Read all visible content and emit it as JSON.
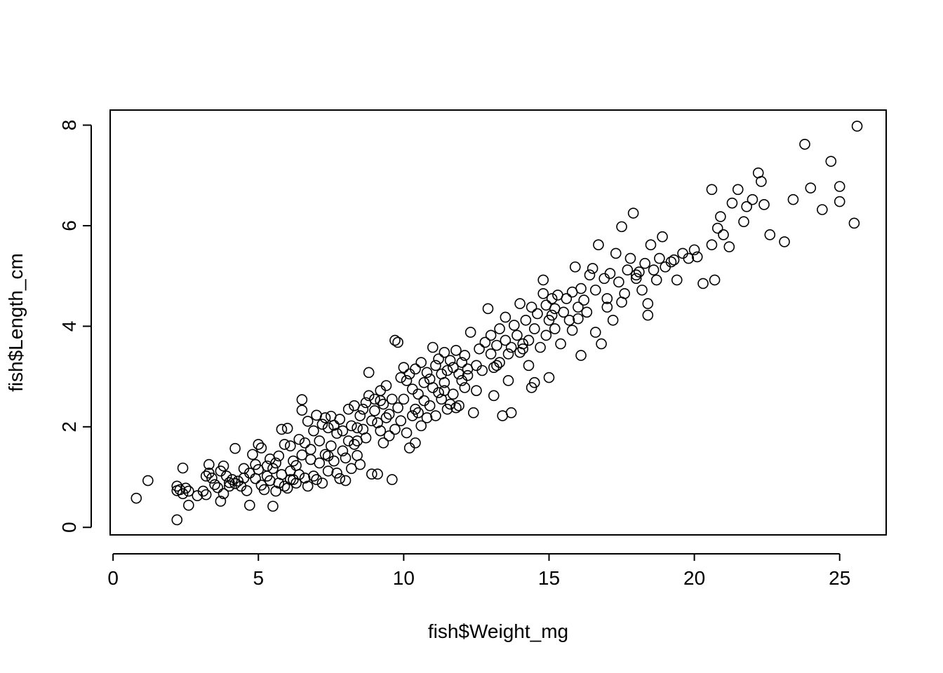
{
  "chart_data": {
    "type": "scatter",
    "title": "",
    "xlabel": "fish$Weight_mg",
    "ylabel": "fish$Length_cm",
    "xlim": [
      -0.1,
      26.6
    ],
    "ylim": [
      -0.15,
      8.3
    ],
    "xticks": [
      0,
      5,
      10,
      15,
      20,
      25
    ],
    "yticks": [
      0,
      2,
      4,
      6,
      8
    ],
    "xtick_labels": [
      "0",
      "5",
      "10",
      "15",
      "20",
      "25"
    ],
    "ytick_labels": [
      "0",
      "2",
      "4",
      "6",
      "8"
    ],
    "grid": false,
    "legend": "none",
    "marker": "open-circle",
    "color": "#000000",
    "points": [
      [
        0.8,
        0.58
      ],
      [
        1.2,
        0.93
      ],
      [
        2.2,
        0.15
      ],
      [
        2.2,
        0.73
      ],
      [
        2.2,
        0.82
      ],
      [
        2.3,
        0.75
      ],
      [
        2.4,
        0.67
      ],
      [
        2.4,
        1.18
      ],
      [
        2.5,
        0.78
      ],
      [
        2.6,
        0.44
      ],
      [
        2.9,
        0.63
      ],
      [
        3.1,
        0.72
      ],
      [
        3.2,
        0.65
      ],
      [
        3.3,
        1.25
      ],
      [
        3.3,
        1.08
      ],
      [
        3.4,
        0.98
      ],
      [
        3.5,
        0.85
      ],
      [
        3.6,
        0.79
      ],
      [
        3.7,
        1.12
      ],
      [
        3.7,
        0.52
      ],
      [
        3.8,
        1.22
      ],
      [
        3.8,
        0.67
      ],
      [
        3.9,
        1.02
      ],
      [
        4.0,
        0.89
      ],
      [
        4.1,
        0.95
      ],
      [
        4.2,
        0.87
      ],
      [
        4.2,
        1.57
      ],
      [
        4.3,
        0.92
      ],
      [
        4.4,
        0.82
      ],
      [
        4.5,
        1.17
      ],
      [
        4.6,
        0.73
      ],
      [
        4.7,
        1.08
      ],
      [
        4.7,
        0.44
      ],
      [
        4.8,
        1.45
      ],
      [
        4.9,
        1.25
      ],
      [
        4.9,
        0.97
      ],
      [
        5.0,
        1.65
      ],
      [
        5.0,
        1.15
      ],
      [
        5.1,
        0.84
      ],
      [
        5.1,
        1.58
      ],
      [
        5.2,
        0.75
      ],
      [
        5.3,
        1.02
      ],
      [
        5.4,
        1.36
      ],
      [
        5.4,
        0.93
      ],
      [
        5.5,
        0.42
      ],
      [
        5.5,
        1.17
      ],
      [
        5.6,
        1.28
      ],
      [
        5.6,
        0.72
      ],
      [
        5.7,
        0.88
      ],
      [
        5.7,
        1.42
      ],
      [
        5.8,
        1.05
      ],
      [
        5.8,
        1.95
      ],
      [
        5.9,
        0.82
      ],
      [
        5.9,
        1.65
      ],
      [
        6.0,
        1.97
      ],
      [
        6.0,
        0.78
      ],
      [
        6.1,
        1.12
      ],
      [
        6.1,
        1.62
      ],
      [
        6.2,
        0.95
      ],
      [
        6.2,
        1.32
      ],
      [
        6.3,
        1.23
      ],
      [
        6.3,
        0.88
      ],
      [
        6.4,
        1.75
      ],
      [
        6.4,
        1.05
      ],
      [
        6.5,
        2.54
      ],
      [
        6.5,
        2.33
      ],
      [
        6.5,
        1.44
      ],
      [
        6.6,
        0.98
      ],
      [
        6.6,
        1.68
      ],
      [
        6.7,
        2.11
      ],
      [
        6.7,
        0.82
      ],
      [
        6.8,
        1.35
      ],
      [
        6.8,
        1.55
      ],
      [
        6.9,
        1.92
      ],
      [
        7.0,
        2.23
      ],
      [
        7.0,
        0.95
      ],
      [
        7.1,
        1.28
      ],
      [
        7.1,
        1.72
      ],
      [
        7.2,
        0.88
      ],
      [
        7.2,
        2.05
      ],
      [
        7.3,
        1.45
      ],
      [
        7.3,
        2.18
      ],
      [
        7.4,
        1.12
      ],
      [
        7.4,
        1.98
      ],
      [
        7.5,
        2.21
      ],
      [
        7.5,
        1.62
      ],
      [
        7.6,
        2.03
      ],
      [
        7.6,
        1.32
      ],
      [
        7.7,
        1.87
      ],
      [
        7.7,
        1.08
      ],
      [
        7.8,
        2.15
      ],
      [
        7.8,
        0.97
      ],
      [
        7.9,
        1.52
      ],
      [
        7.9,
        1.92
      ],
      [
        8.0,
        0.93
      ],
      [
        8.0,
        1.38
      ],
      [
        8.1,
        2.35
      ],
      [
        8.1,
        1.72
      ],
      [
        8.2,
        1.17
      ],
      [
        8.2,
        2.02
      ],
      [
        8.3,
        1.65
      ],
      [
        8.3,
        2.42
      ],
      [
        8.4,
        1.43
      ],
      [
        8.4,
        1.72
      ],
      [
        8.5,
        1.25
      ],
      [
        8.5,
        2.22
      ],
      [
        8.6,
        2.35
      ],
      [
        8.6,
        1.95
      ],
      [
        8.7,
        2.48
      ],
      [
        8.7,
        1.78
      ],
      [
        8.8,
        3.08
      ],
      [
        8.8,
        2.62
      ],
      [
        8.9,
        2.12
      ],
      [
        8.9,
        1.06
      ],
      [
        9.0,
        2.55
      ],
      [
        9.0,
        2.32
      ],
      [
        9.1,
        1.06
      ],
      [
        9.1,
        2.08
      ],
      [
        9.2,
        2.72
      ],
      [
        9.2,
        1.92
      ],
      [
        9.3,
        2.45
      ],
      [
        9.3,
        1.68
      ],
      [
        9.4,
        2.18
      ],
      [
        9.4,
        2.82
      ],
      [
        9.5,
        1.82
      ],
      [
        9.5,
        2.25
      ],
      [
        9.6,
        0.95
      ],
      [
        9.6,
        2.55
      ],
      [
        9.7,
        3.72
      ],
      [
        9.7,
        1.95
      ],
      [
        9.8,
        3.68
      ],
      [
        9.8,
        2.38
      ],
      [
        9.9,
        2.98
      ],
      [
        9.9,
        2.12
      ],
      [
        10.0,
        3.18
      ],
      [
        10.0,
        2.55
      ],
      [
        10.1,
        1.88
      ],
      [
        10.1,
        2.92
      ],
      [
        10.2,
        1.58
      ],
      [
        10.2,
        3.05
      ],
      [
        10.3,
        2.22
      ],
      [
        10.3,
        2.75
      ],
      [
        10.4,
        1.68
      ],
      [
        10.4,
        3.15
      ],
      [
        10.5,
        2.65
      ],
      [
        10.5,
        2.28
      ],
      [
        10.6,
        3.28
      ],
      [
        10.6,
        2.02
      ],
      [
        10.7,
        2.88
      ],
      [
        10.7,
        2.52
      ],
      [
        10.8,
        3.08
      ],
      [
        10.8,
        2.18
      ],
      [
        10.9,
        2.95
      ],
      [
        10.9,
        2.42
      ],
      [
        11.0,
        3.58
      ],
      [
        11.0,
        2.78
      ],
      [
        11.1,
        2.22
      ],
      [
        11.1,
        3.22
      ],
      [
        11.2,
        2.68
      ],
      [
        11.2,
        3.35
      ],
      [
        11.3,
        2.55
      ],
      [
        11.3,
        3.05
      ],
      [
        11.4,
        2.88
      ],
      [
        11.4,
        3.48
      ],
      [
        11.5,
        2.35
      ],
      [
        11.5,
        3.12
      ],
      [
        11.6,
        3.32
      ],
      [
        11.6,
        2.45
      ],
      [
        11.7,
        2.65
      ],
      [
        11.7,
        3.18
      ],
      [
        11.8,
        2.38
      ],
      [
        11.8,
        3.52
      ],
      [
        11.9,
        3.05
      ],
      [
        11.9,
        2.42
      ],
      [
        12.0,
        3.28
      ],
      [
        12.0,
        2.92
      ],
      [
        12.1,
        2.78
      ],
      [
        12.1,
        3.42
      ],
      [
        12.2,
        3.15
      ],
      [
        12.3,
        3.88
      ],
      [
        12.4,
        2.28
      ],
      [
        12.5,
        3.22
      ],
      [
        12.5,
        2.72
      ],
      [
        12.6,
        3.55
      ],
      [
        12.7,
        3.12
      ],
      [
        12.8,
        3.68
      ],
      [
        12.9,
        4.35
      ],
      [
        13.0,
        3.45
      ],
      [
        13.0,
        3.82
      ],
      [
        13.1,
        2.62
      ],
      [
        13.1,
        3.18
      ],
      [
        13.2,
        3.62
      ],
      [
        13.3,
        3.28
      ],
      [
        13.3,
        3.95
      ],
      [
        13.4,
        2.22
      ],
      [
        13.5,
        3.72
      ],
      [
        13.5,
        4.18
      ],
      [
        13.6,
        3.45
      ],
      [
        13.6,
        2.92
      ],
      [
        13.7,
        2.28
      ],
      [
        13.7,
        3.58
      ],
      [
        13.8,
        4.02
      ],
      [
        13.9,
        3.82
      ],
      [
        14.0,
        4.45
      ],
      [
        14.0,
        3.48
      ],
      [
        14.1,
        3.65
      ],
      [
        14.2,
        4.12
      ],
      [
        14.3,
        3.72
      ],
      [
        14.3,
        3.22
      ],
      [
        14.4,
        4.38
      ],
      [
        14.4,
        2.78
      ],
      [
        14.5,
        3.95
      ],
      [
        14.5,
        2.88
      ],
      [
        14.6,
        4.25
      ],
      [
        14.7,
        3.58
      ],
      [
        14.8,
        4.92
      ],
      [
        14.8,
        4.65
      ],
      [
        14.9,
        4.42
      ],
      [
        14.9,
        3.82
      ],
      [
        15.0,
        2.98
      ],
      [
        15.0,
        4.12
      ],
      [
        15.1,
        4.55
      ],
      [
        15.2,
        3.95
      ],
      [
        15.2,
        4.35
      ],
      [
        15.3,
        4.62
      ],
      [
        15.4,
        3.65
      ],
      [
        15.5,
        4.28
      ],
      [
        15.6,
        4.55
      ],
      [
        15.7,
        4.12
      ],
      [
        15.8,
        4.68
      ],
      [
        15.8,
        3.92
      ],
      [
        15.9,
        5.18
      ],
      [
        16.0,
        4.38
      ],
      [
        16.1,
        3.42
      ],
      [
        16.1,
        4.75
      ],
      [
        16.2,
        4.52
      ],
      [
        16.3,
        4.28
      ],
      [
        16.4,
        5.02
      ],
      [
        16.5,
        5.15
      ],
      [
        16.6,
        3.88
      ],
      [
        16.6,
        4.72
      ],
      [
        16.7,
        5.62
      ],
      [
        16.8,
        3.65
      ],
      [
        16.9,
        4.95
      ],
      [
        17.0,
        4.55
      ],
      [
        17.1,
        5.05
      ],
      [
        17.2,
        4.12
      ],
      [
        17.3,
        5.45
      ],
      [
        17.4,
        4.88
      ],
      [
        17.5,
        4.48
      ],
      [
        17.5,
        5.98
      ],
      [
        17.6,
        4.65
      ],
      [
        17.7,
        5.12
      ],
      [
        17.8,
        5.35
      ],
      [
        17.9,
        6.25
      ],
      [
        18.0,
        4.95
      ],
      [
        18.1,
        5.08
      ],
      [
        18.2,
        4.72
      ],
      [
        18.3,
        5.25
      ],
      [
        18.4,
        4.45
      ],
      [
        18.4,
        4.22
      ],
      [
        18.5,
        5.62
      ],
      [
        18.6,
        5.12
      ],
      [
        18.7,
        4.92
      ],
      [
        18.8,
        5.35
      ],
      [
        18.9,
        5.78
      ],
      [
        19.0,
        5.18
      ],
      [
        19.2,
        5.28
      ],
      [
        19.4,
        4.92
      ],
      [
        19.6,
        5.45
      ],
      [
        19.8,
        5.35
      ],
      [
        20.0,
        5.52
      ],
      [
        20.1,
        5.38
      ],
      [
        20.3,
        4.85
      ],
      [
        20.6,
        6.72
      ],
      [
        20.6,
        5.62
      ],
      [
        20.7,
        4.92
      ],
      [
        20.8,
        5.95
      ],
      [
        20.9,
        6.18
      ],
      [
        21.0,
        5.82
      ],
      [
        21.2,
        5.58
      ],
      [
        21.3,
        6.45
      ],
      [
        21.5,
        6.72
      ],
      [
        21.7,
        6.08
      ],
      [
        21.8,
        6.38
      ],
      [
        22.0,
        6.52
      ],
      [
        22.2,
        7.05
      ],
      [
        22.3,
        6.88
      ],
      [
        22.4,
        6.42
      ],
      [
        22.6,
        5.82
      ],
      [
        23.1,
        5.68
      ],
      [
        23.4,
        6.52
      ],
      [
        23.8,
        7.62
      ],
      [
        24.0,
        6.75
      ],
      [
        24.4,
        6.32
      ],
      [
        24.7,
        7.28
      ],
      [
        25.0,
        6.78
      ],
      [
        25.0,
        6.48
      ],
      [
        25.5,
        6.05
      ],
      [
        25.6,
        7.98
      ],
      [
        2.6,
        0.72
      ],
      [
        3.2,
        1.02
      ],
      [
        4.0,
        0.82
      ],
      [
        4.5,
        0.98
      ],
      [
        5.3,
        1.22
      ],
      [
        6.1,
        0.95
      ],
      [
        6.9,
        1.02
      ],
      [
        7.4,
        1.42
      ],
      [
        8.4,
        1.98
      ],
      [
        9.2,
        2.52
      ],
      [
        10.4,
        2.35
      ],
      [
        11.4,
        2.72
      ],
      [
        12.2,
        3.02
      ],
      [
        13.2,
        3.22
      ],
      [
        14.1,
        3.55
      ],
      [
        15.1,
        4.22
      ],
      [
        16.0,
        4.15
      ],
      [
        17.0,
        4.38
      ],
      [
        18.0,
        5.02
      ],
      [
        19.3,
        5.32
      ]
    ]
  }
}
